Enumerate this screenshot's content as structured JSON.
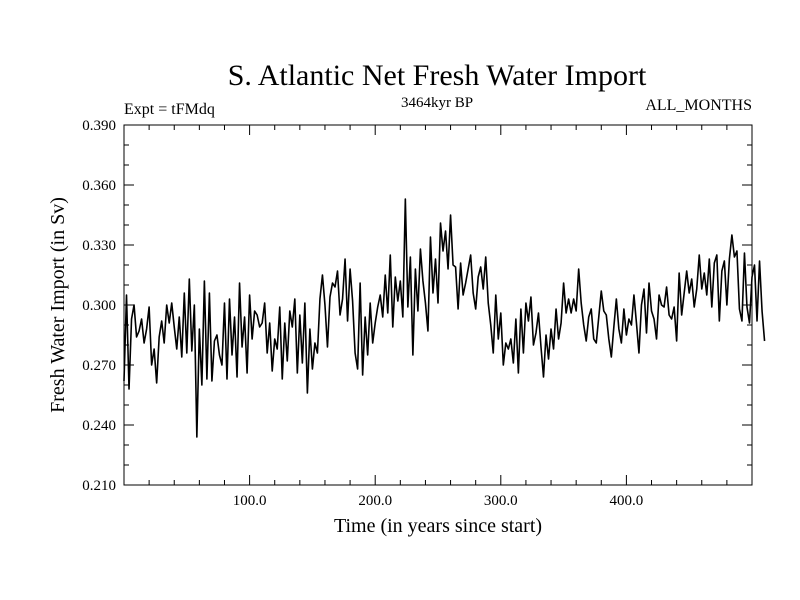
{
  "chart_data": {
    "type": "line",
    "title": "S. Atlantic Net Fresh Water Import",
    "subtitle": "3464kyr BP",
    "left_label": "Expt = tFMdq",
    "right_label": "ALL_MONTHS",
    "xlabel": "Time (in years since start)",
    "ylabel": "Fresh Water Import (in Sv)",
    "xlim": [
      0,
      500
    ],
    "ylim": [
      0.21,
      0.39
    ],
    "x_ticks": [
      100,
      200,
      300,
      400
    ],
    "x_tick_labels": [
      "100.0",
      "200.0",
      "300.0",
      "400.0"
    ],
    "y_ticks": [
      0.21,
      0.24,
      0.27,
      0.3,
      0.33,
      0.36,
      0.39
    ],
    "y_tick_labels": [
      "0.210",
      "0.240",
      "0.270",
      "0.300",
      "0.330",
      "0.360",
      "0.390"
    ],
    "grid": false,
    "series": [
      {
        "name": "Fresh Water Import",
        "x_start": 0,
        "x_step": 2,
        "values": [
          0.262,
          0.305,
          0.258,
          0.293,
          0.3,
          0.284,
          0.287,
          0.293,
          0.281,
          0.288,
          0.299,
          0.27,
          0.278,
          0.261,
          0.284,
          0.292,
          0.281,
          0.3,
          0.291,
          0.301,
          0.289,
          0.278,
          0.294,
          0.274,
          0.306,
          0.276,
          0.313,
          0.277,
          0.3,
          0.234,
          0.288,
          0.26,
          0.312,
          0.263,
          0.306,
          0.262,
          0.282,
          0.285,
          0.275,
          0.27,
          0.301,
          0.263,
          0.303,
          0.275,
          0.294,
          0.264,
          0.311,
          0.279,
          0.294,
          0.266,
          0.305,
          0.283,
          0.297,
          0.295,
          0.289,
          0.291,
          0.301,
          0.276,
          0.291,
          0.267,
          0.283,
          0.278,
          0.299,
          0.263,
          0.291,
          0.272,
          0.297,
          0.289,
          0.303,
          0.266,
          0.295,
          0.271,
          0.301,
          0.256,
          0.288,
          0.268,
          0.281,
          0.276,
          0.303,
          0.315,
          0.3,
          0.279,
          0.304,
          0.311,
          0.309,
          0.317,
          0.295,
          0.303,
          0.323,
          0.292,
          0.318,
          0.302,
          0.276,
          0.268,
          0.311,
          0.265,
          0.294,
          0.275,
          0.301,
          0.281,
          0.291,
          0.299,
          0.305,
          0.294,
          0.315,
          0.296,
          0.325,
          0.289,
          0.314,
          0.302,
          0.312,
          0.294,
          0.353,
          0.299,
          0.324,
          0.275,
          0.318,
          0.297,
          0.328,
          0.312,
          0.301,
          0.287,
          0.334,
          0.306,
          0.323,
          0.301,
          0.341,
          0.327,
          0.337,
          0.318,
          0.345,
          0.32,
          0.319,
          0.298,
          0.321,
          0.305,
          0.311,
          0.318,
          0.325,
          0.306,
          0.298,
          0.314,
          0.319,
          0.308,
          0.324,
          0.301,
          0.29,
          0.276,
          0.305,
          0.283,
          0.296,
          0.27,
          0.281,
          0.278,
          0.283,
          0.271,
          0.293,
          0.266,
          0.298,
          0.276,
          0.301,
          0.292,
          0.304,
          0.28,
          0.286,
          0.296,
          0.279,
          0.264,
          0.285,
          0.273,
          0.288,
          0.278,
          0.298,
          0.283,
          0.291,
          0.311,
          0.296,
          0.303,
          0.296,
          0.303,
          0.297,
          0.318,
          0.301,
          0.29,
          0.282,
          0.294,
          0.298,
          0.283,
          0.281,
          0.294,
          0.307,
          0.297,
          0.295,
          0.283,
          0.274,
          0.289,
          0.303,
          0.288,
          0.281,
          0.298,
          0.285,
          0.293,
          0.29,
          0.305,
          0.291,
          0.276,
          0.3,
          0.308,
          0.286,
          0.311,
          0.297,
          0.293,
          0.283,
          0.305,
          0.3,
          0.299,
          0.309,
          0.295,
          0.293,
          0.299,
          0.282,
          0.316,
          0.295,
          0.306,
          0.317,
          0.306,
          0.313,
          0.299,
          0.308,
          0.325,
          0.308,
          0.316,
          0.305,
          0.323,
          0.299,
          0.321,
          0.325,
          0.292,
          0.317,
          0.322,
          0.3,
          0.323,
          0.335,
          0.324,
          0.327,
          0.298,
          0.292,
          0.326,
          0.299,
          0.291,
          0.314,
          0.32,
          0.292,
          0.322,
          0.297,
          0.282
        ]
      }
    ]
  }
}
